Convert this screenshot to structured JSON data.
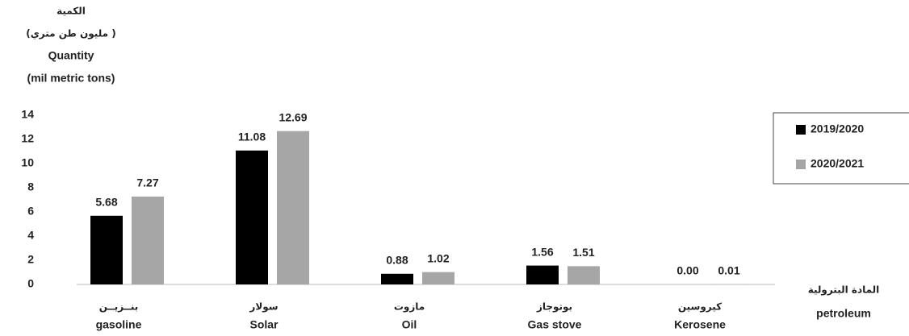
{
  "chart_data": {
    "type": "bar",
    "y_axis_label": [
      "الكمية",
      "(مليون طن متري )",
      "Quantity",
      "(mil metric tons)"
    ],
    "x_axis_label": [
      "المادة البترولية",
      "petroleum"
    ],
    "categories": [
      "gasoline",
      "Solar",
      "Oil",
      "Gas stove",
      "Kerosene"
    ],
    "categories_ar": [
      "بنــزيــن",
      "سولار",
      "مازوت",
      "بوتوجاز",
      "كيروسين"
    ],
    "series": [
      {
        "name": "2019/2020",
        "color": "#000000",
        "values": [
          5.68,
          11.08,
          0.88,
          1.56,
          0.0
        ],
        "value_labels": [
          "5.68",
          "11.08",
          "0.88",
          "1.56",
          "0.00"
        ]
      },
      {
        "name": "2020/2021",
        "color": "#a6a6a6",
        "values": [
          7.27,
          12.69,
          1.02,
          1.51,
          0.01
        ],
        "value_labels": [
          "7.27",
          "12.69",
          "1.02",
          "1.51",
          "0.01"
        ]
      }
    ],
    "ylim": [
      0,
      14
    ],
    "yticks": [
      0,
      2,
      4,
      6,
      8,
      10,
      12,
      14
    ],
    "grid": false,
    "legend": "right"
  }
}
